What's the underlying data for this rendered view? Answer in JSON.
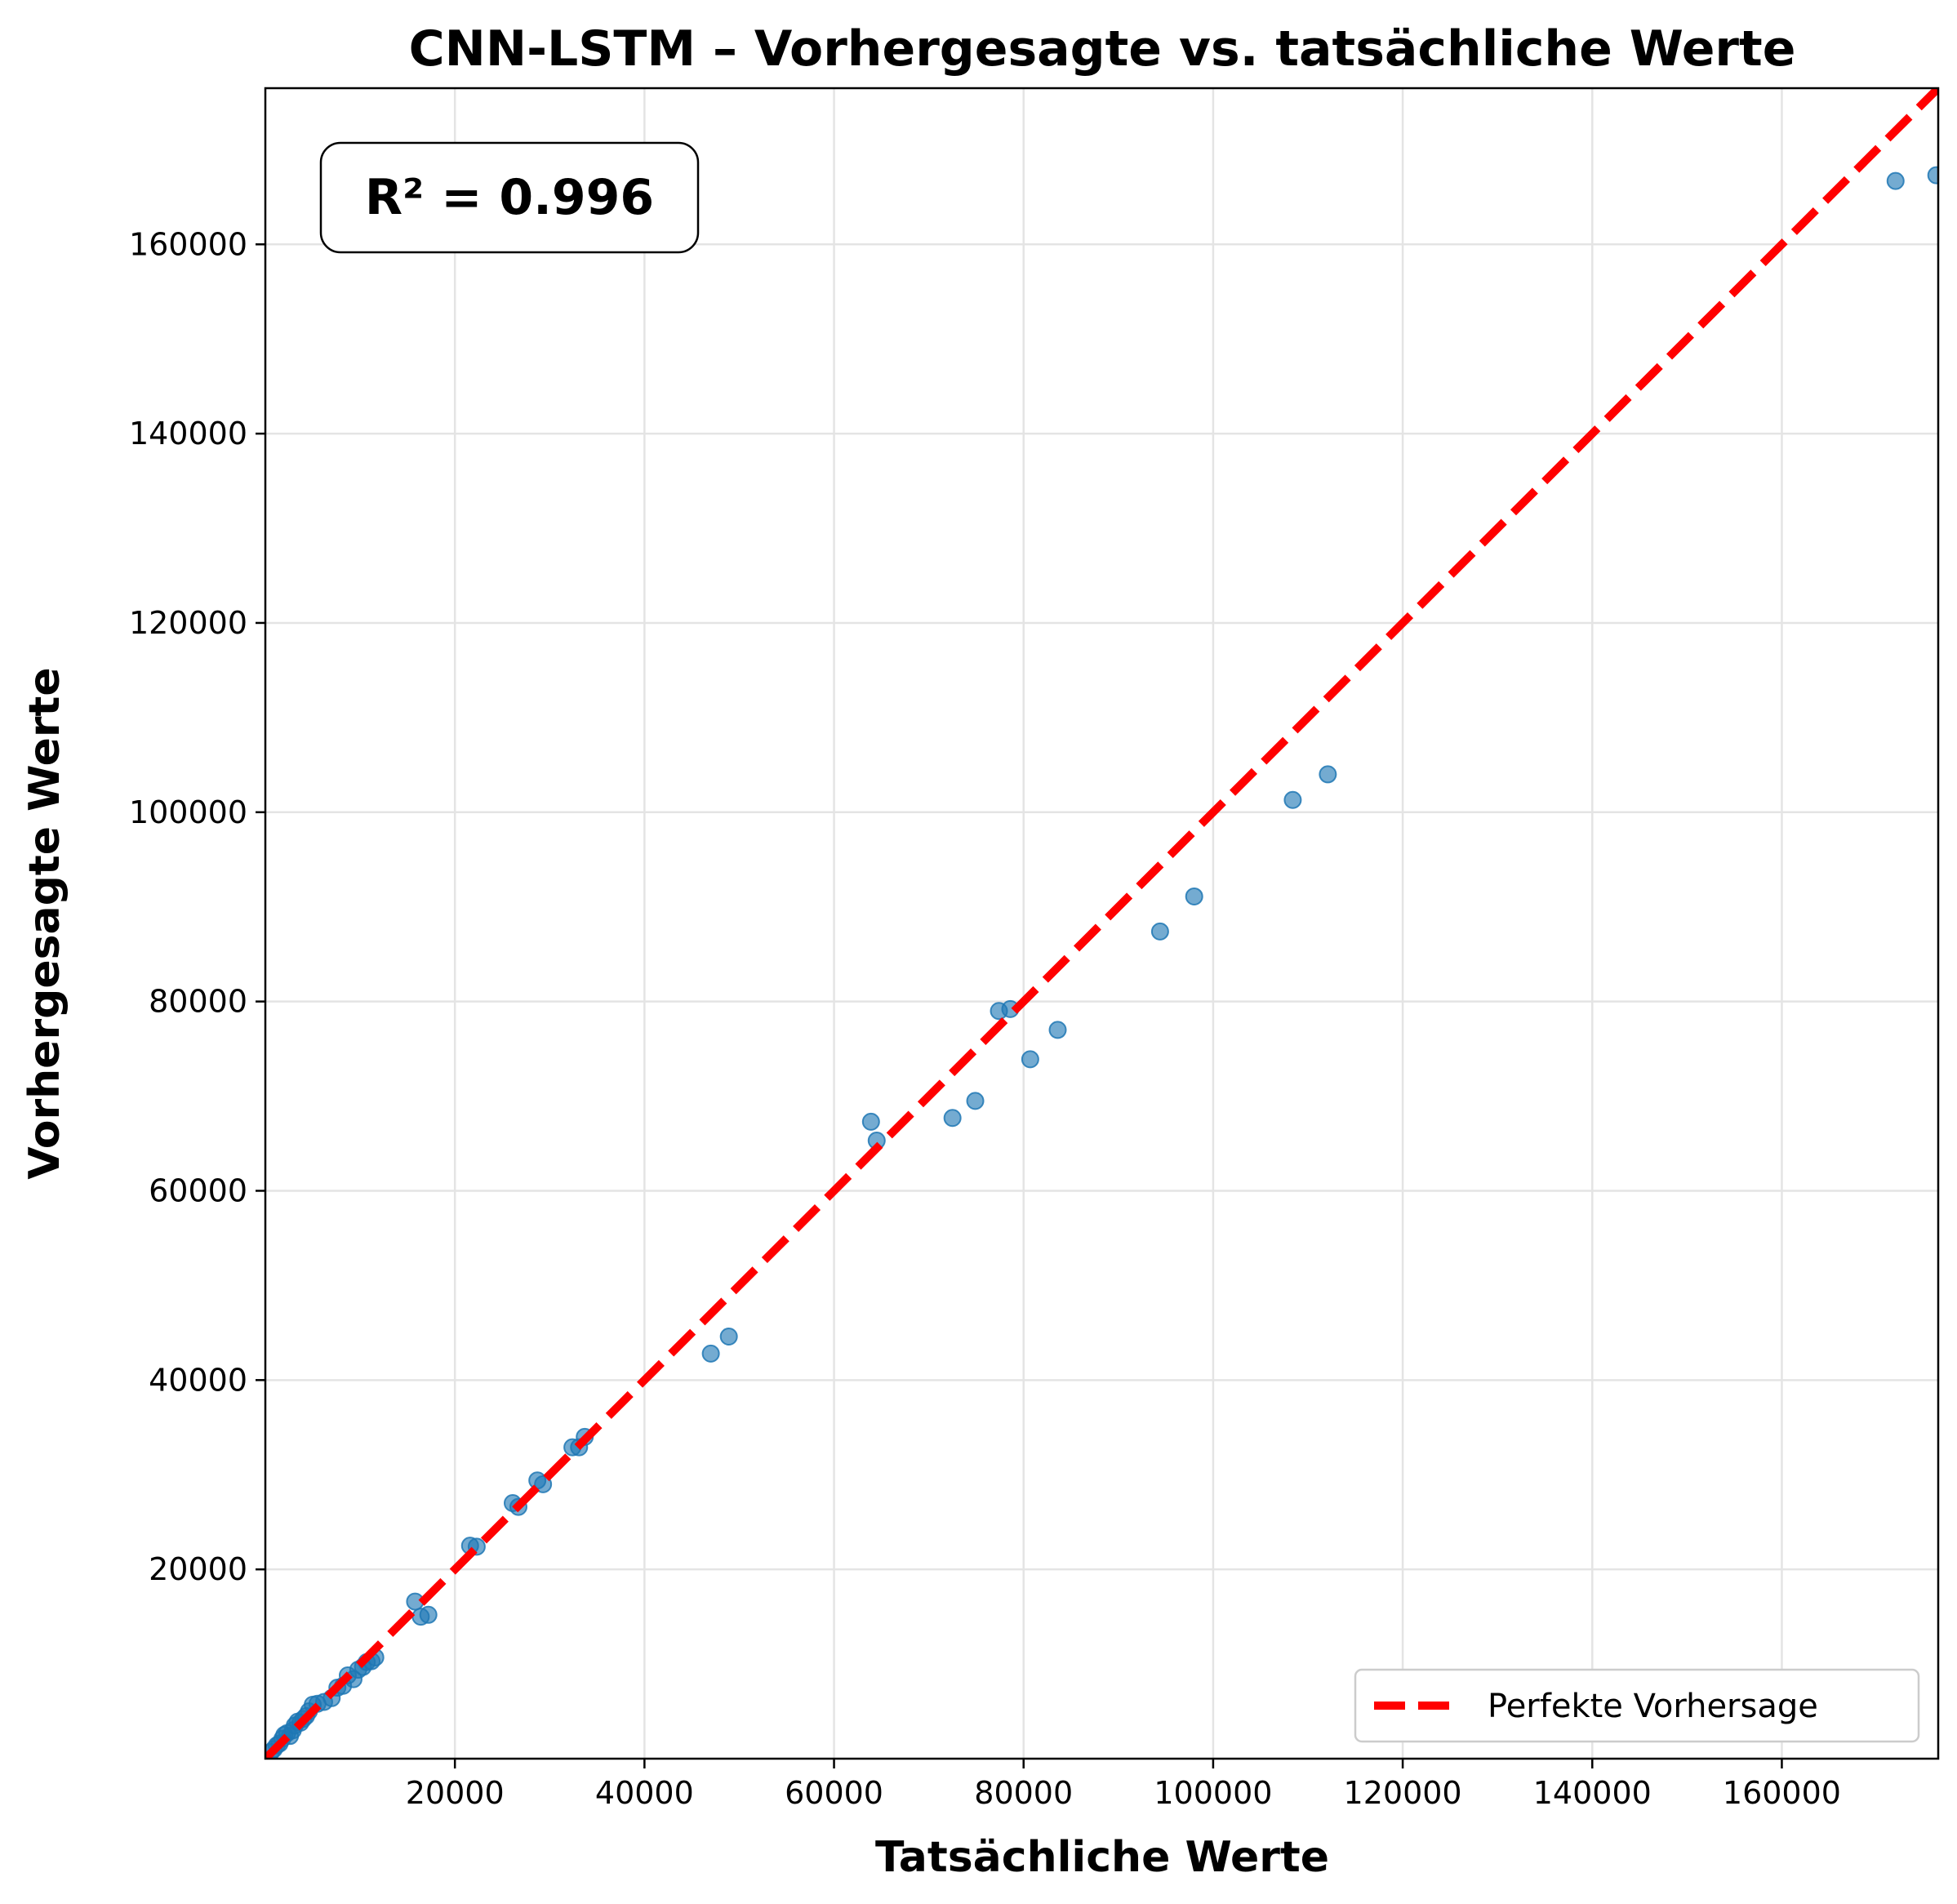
{
  "chart_data": {
    "type": "scatter",
    "title": "CNN-LSTM – Vorhergesagte vs. tatsächliche Werte",
    "xlabel": "Tatsächliche Werte",
    "ylabel": "Vorhergesagte Werte",
    "xlim": [
      0,
      176500
    ],
    "ylim": [
      0,
      176500
    ],
    "xticks": [
      20000,
      40000,
      60000,
      80000,
      100000,
      120000,
      140000,
      160000
    ],
    "yticks": [
      20000,
      40000,
      60000,
      80000,
      100000,
      120000,
      140000,
      160000
    ],
    "grid": true,
    "legend_position": "bottom-right",
    "annotation": "R² = 0.996",
    "reference_line": {
      "label": "Perfekte Vorhersage",
      "color": "#ff0000",
      "style": "dashed"
    },
    "point_color": "#1f77b4",
    "points": [
      [
        600,
        700
      ],
      [
        900,
        1000
      ],
      [
        1200,
        1400
      ],
      [
        1500,
        1600
      ],
      [
        1800,
        2100
      ],
      [
        2000,
        2500
      ],
      [
        2300,
        2700
      ],
      [
        2600,
        2400
      ],
      [
        2900,
        3000
      ],
      [
        3100,
        3500
      ],
      [
        3400,
        3900
      ],
      [
        3700,
        3800
      ],
      [
        4000,
        4200
      ],
      [
        4300,
        4500
      ],
      [
        4600,
        5000
      ],
      [
        5000,
        5700
      ],
      [
        5500,
        5800
      ],
      [
        6200,
        6000
      ],
      [
        7000,
        6400
      ],
      [
        7600,
        7500
      ],
      [
        8200,
        7700
      ],
      [
        8700,
        8800
      ],
      [
        9300,
        8400
      ],
      [
        9800,
        9400
      ],
      [
        10300,
        9700
      ],
      [
        10700,
        10200
      ],
      [
        11200,
        10300
      ],
      [
        11600,
        10700
      ],
      [
        15800,
        16600
      ],
      [
        16400,
        15000
      ],
      [
        17200,
        15200
      ],
      [
        21600,
        22500
      ],
      [
        22300,
        22400
      ],
      [
        26100,
        27000
      ],
      [
        26700,
        26600
      ],
      [
        28700,
        29400
      ],
      [
        29300,
        29000
      ],
      [
        32400,
        32900
      ],
      [
        33100,
        32900
      ],
      [
        33700,
        34000
      ],
      [
        47000,
        42800
      ],
      [
        48900,
        44600
      ],
      [
        63900,
        67300
      ],
      [
        64500,
        65300
      ],
      [
        72500,
        67700
      ],
      [
        74900,
        69500
      ],
      [
        77400,
        79000
      ],
      [
        78600,
        79200
      ],
      [
        80700,
        73900
      ],
      [
        83600,
        77000
      ],
      [
        94400,
        87400
      ],
      [
        98000,
        91100
      ],
      [
        108400,
        101300
      ],
      [
        112100,
        104000
      ],
      [
        172000,
        166700
      ],
      [
        176300,
        167300
      ]
    ]
  }
}
